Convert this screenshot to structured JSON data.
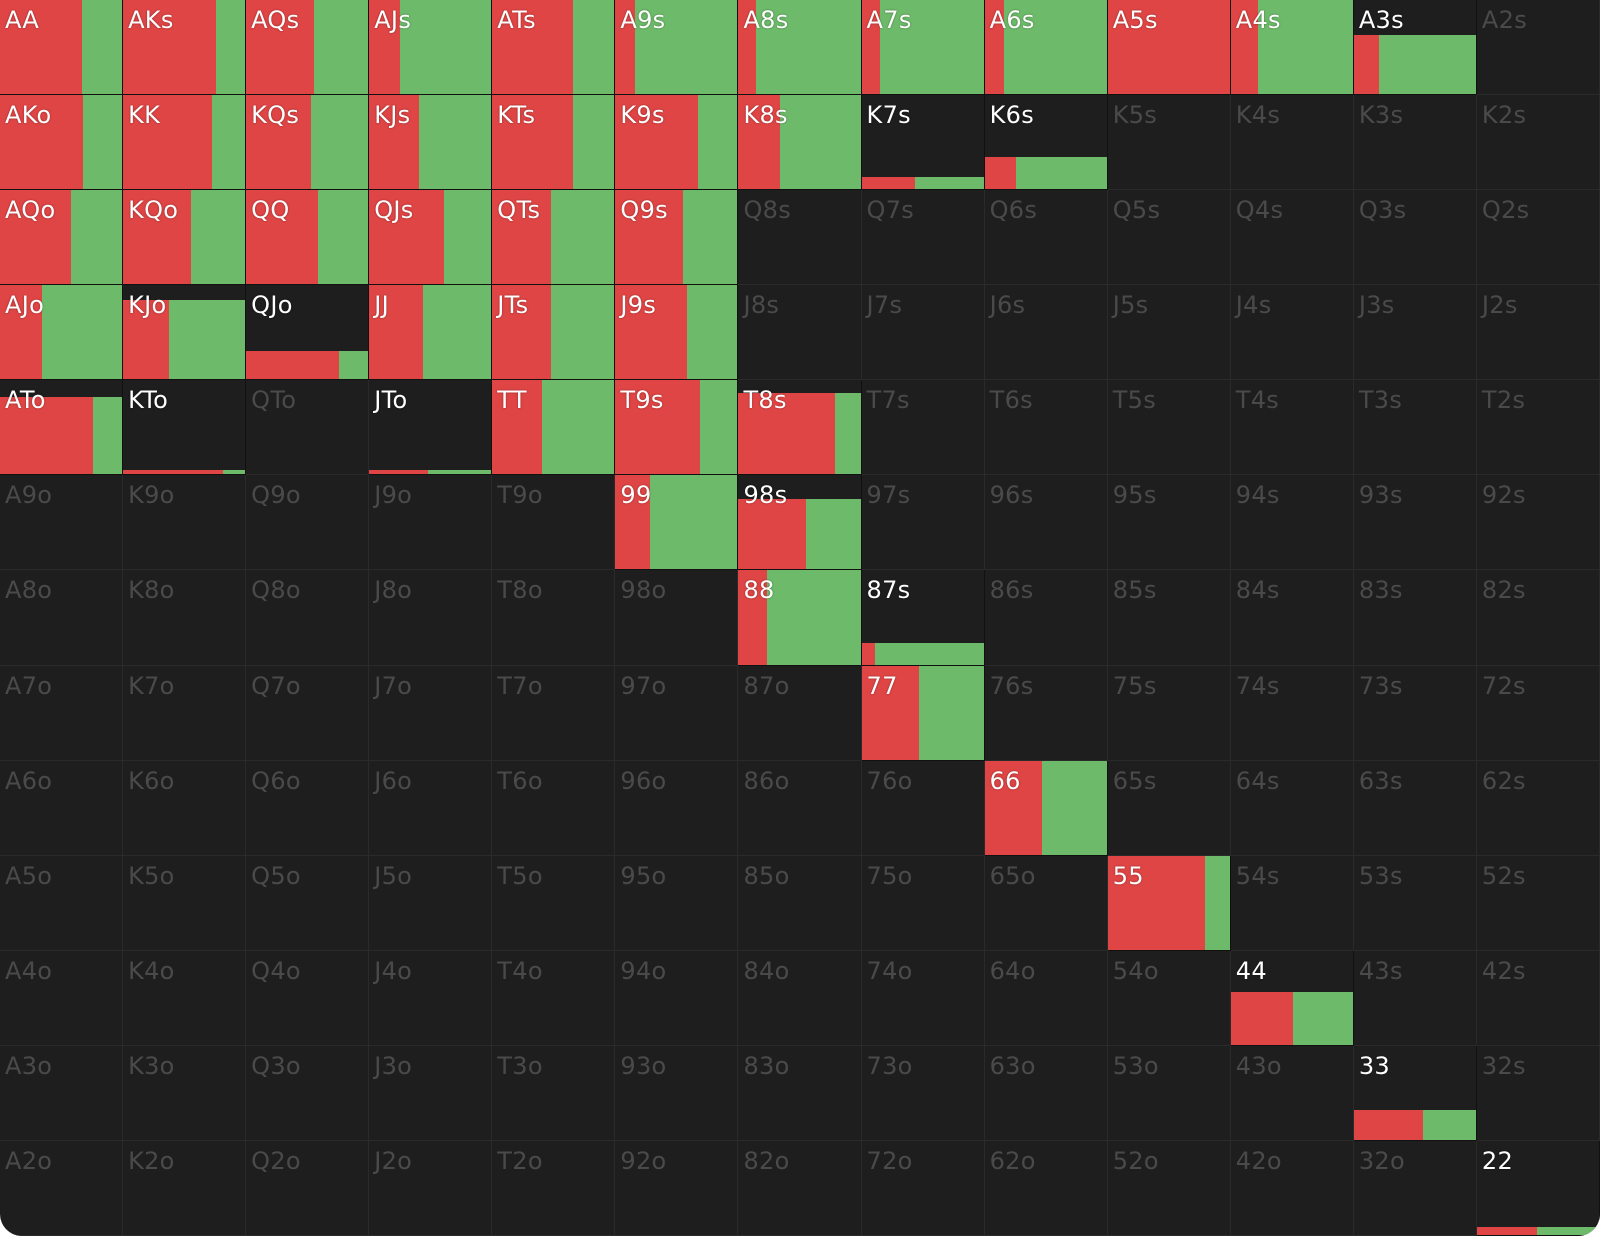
{
  "grid": {
    "rows": [
      [
        {
          "label": "AA",
          "freq": 100,
          "raise": 67,
          "call": 33
        },
        {
          "label": "AKs",
          "freq": 100,
          "raise": 76,
          "call": 24
        },
        {
          "label": "AQs",
          "freq": 100,
          "raise": 56,
          "call": 44
        },
        {
          "label": "AJs",
          "freq": 100,
          "raise": 25,
          "call": 75
        },
        {
          "label": "ATs",
          "freq": 100,
          "raise": 66,
          "call": 34
        },
        {
          "label": "A9s",
          "freq": 100,
          "raise": 16,
          "call": 84
        },
        {
          "label": "A8s",
          "freq": 100,
          "raise": 14,
          "call": 86
        },
        {
          "label": "A7s",
          "freq": 100,
          "raise": 15,
          "call": 85
        },
        {
          "label": "A6s",
          "freq": 100,
          "raise": 16,
          "call": 84
        },
        {
          "label": "A5s",
          "freq": 100,
          "raise": 100,
          "call": 0
        },
        {
          "label": "A4s",
          "freq": 100,
          "raise": 22,
          "call": 78
        },
        {
          "label": "A3s",
          "freq": 63,
          "raise": 21,
          "call": 79
        },
        {
          "label": "A2s"
        }
      ],
      [
        {
          "label": "AKo",
          "freq": 100,
          "raise": 68,
          "call": 32
        },
        {
          "label": "KK",
          "freq": 100,
          "raise": 73,
          "call": 27
        },
        {
          "label": "KQs",
          "freq": 100,
          "raise": 53,
          "call": 47
        },
        {
          "label": "KJs",
          "freq": 100,
          "raise": 41,
          "call": 59
        },
        {
          "label": "KTs",
          "freq": 100,
          "raise": 66,
          "call": 34
        },
        {
          "label": "K9s",
          "freq": 100,
          "raise": 68,
          "call": 32
        },
        {
          "label": "K8s",
          "freq": 100,
          "raise": 34,
          "call": 66
        },
        {
          "label": "K7s",
          "freq": 13,
          "raise": 44,
          "call": 56
        },
        {
          "label": "K6s",
          "freq": 34,
          "raise": 26,
          "call": 74
        },
        {
          "label": "K5s"
        },
        {
          "label": "K4s"
        },
        {
          "label": "K3s"
        },
        {
          "label": "K2s"
        }
      ],
      [
        {
          "label": "AQo",
          "freq": 100,
          "raise": 58,
          "call": 42
        },
        {
          "label": "KQo",
          "freq": 100,
          "raise": 56,
          "call": 44
        },
        {
          "label": "QQ",
          "freq": 100,
          "raise": 59,
          "call": 41
        },
        {
          "label": "QJs",
          "freq": 100,
          "raise": 61,
          "call": 39
        },
        {
          "label": "QTs",
          "freq": 100,
          "raise": 48,
          "call": 52
        },
        {
          "label": "Q9s",
          "freq": 100,
          "raise": 55,
          "call": 45
        },
        {
          "label": "Q8s"
        },
        {
          "label": "Q7s"
        },
        {
          "label": "Q6s"
        },
        {
          "label": "Q5s"
        },
        {
          "label": "Q4s"
        },
        {
          "label": "Q3s"
        },
        {
          "label": "Q2s"
        }
      ],
      [
        {
          "label": "AJo",
          "freq": 100,
          "raise": 34,
          "call": 66
        },
        {
          "label": "KJo",
          "freq": 84,
          "raise": 38,
          "call": 62
        },
        {
          "label": "QJo",
          "freq": 30,
          "raise": 76,
          "call": 24
        },
        {
          "label": "JJ",
          "freq": 100,
          "raise": 44,
          "call": 56
        },
        {
          "label": "JTs",
          "freq": 100,
          "raise": 48,
          "call": 52
        },
        {
          "label": "J9s",
          "freq": 100,
          "raise": 59,
          "call": 41
        },
        {
          "label": "J8s"
        },
        {
          "label": "J7s"
        },
        {
          "label": "J6s"
        },
        {
          "label": "J5s"
        },
        {
          "label": "J4s"
        },
        {
          "label": "J3s"
        },
        {
          "label": "J2s"
        }
      ],
      [
        {
          "label": "ATo",
          "freq": 82,
          "raise": 76,
          "call": 24
        },
        {
          "label": "KTo",
          "freq": 5,
          "raise": 82,
          "call": 18
        },
        {
          "label": "QTo"
        },
        {
          "label": "JTo",
          "freq": 5,
          "raise": 48,
          "call": 52
        },
        {
          "label": "TT",
          "freq": 100,
          "raise": 41,
          "call": 59
        },
        {
          "label": "T9s",
          "freq": 100,
          "raise": 69,
          "call": 31
        },
        {
          "label": "T8s",
          "freq": 87,
          "raise": 79,
          "call": 21
        },
        {
          "label": "T7s"
        },
        {
          "label": "T6s"
        },
        {
          "label": "T5s"
        },
        {
          "label": "T4s"
        },
        {
          "label": "T3s"
        },
        {
          "label": "T2s"
        }
      ],
      [
        {
          "label": "A9o"
        },
        {
          "label": "K9o"
        },
        {
          "label": "Q9o"
        },
        {
          "label": "J9o"
        },
        {
          "label": "T9o"
        },
        {
          "label": "99",
          "freq": 100,
          "raise": 28,
          "call": 72
        },
        {
          "label": "98s",
          "freq": 75,
          "raise": 55,
          "call": 45
        },
        {
          "label": "97s"
        },
        {
          "label": "96s"
        },
        {
          "label": "95s"
        },
        {
          "label": "94s"
        },
        {
          "label": "93s"
        },
        {
          "label": "92s"
        }
      ],
      [
        {
          "label": "A8o"
        },
        {
          "label": "K8o"
        },
        {
          "label": "Q8o"
        },
        {
          "label": "J8o"
        },
        {
          "label": "T8o"
        },
        {
          "label": "98o"
        },
        {
          "label": "88",
          "freq": 100,
          "raise": 23,
          "call": 77
        },
        {
          "label": "87s",
          "freq": 23,
          "raise": 11,
          "call": 89
        },
        {
          "label": "86s"
        },
        {
          "label": "85s"
        },
        {
          "label": "84s"
        },
        {
          "label": "83s"
        },
        {
          "label": "82s"
        }
      ],
      [
        {
          "label": "A7o"
        },
        {
          "label": "K7o"
        },
        {
          "label": "Q7o"
        },
        {
          "label": "J7o"
        },
        {
          "label": "T7o"
        },
        {
          "label": "97o"
        },
        {
          "label": "87o"
        },
        {
          "label": "77",
          "freq": 100,
          "raise": 47,
          "call": 53
        },
        {
          "label": "76s"
        },
        {
          "label": "75s"
        },
        {
          "label": "74s"
        },
        {
          "label": "73s"
        },
        {
          "label": "72s"
        }
      ],
      [
        {
          "label": "A6o"
        },
        {
          "label": "K6o"
        },
        {
          "label": "Q6o"
        },
        {
          "label": "J6o"
        },
        {
          "label": "T6o"
        },
        {
          "label": "96o"
        },
        {
          "label": "86o"
        },
        {
          "label": "76o"
        },
        {
          "label": "66",
          "freq": 100,
          "raise": 47,
          "call": 53
        },
        {
          "label": "65s"
        },
        {
          "label": "64s"
        },
        {
          "label": "63s"
        },
        {
          "label": "62s"
        }
      ],
      [
        {
          "label": "A5o"
        },
        {
          "label": "K5o"
        },
        {
          "label": "Q5o"
        },
        {
          "label": "J5o"
        },
        {
          "label": "T5o"
        },
        {
          "label": "95o"
        },
        {
          "label": "85o"
        },
        {
          "label": "75o"
        },
        {
          "label": "65o"
        },
        {
          "label": "55",
          "freq": 100,
          "raise": 80,
          "call": 20
        },
        {
          "label": "54s"
        },
        {
          "label": "53s"
        },
        {
          "label": "52s"
        }
      ],
      [
        {
          "label": "A4o"
        },
        {
          "label": "K4o"
        },
        {
          "label": "Q4o"
        },
        {
          "label": "J4o"
        },
        {
          "label": "T4o"
        },
        {
          "label": "94o"
        },
        {
          "label": "84o"
        },
        {
          "label": "74o"
        },
        {
          "label": "64o"
        },
        {
          "label": "54o"
        },
        {
          "label": "44",
          "freq": 56,
          "raise": 51,
          "call": 49
        },
        {
          "label": "43s"
        },
        {
          "label": "42s"
        }
      ],
      [
        {
          "label": "A3o"
        },
        {
          "label": "K3o"
        },
        {
          "label": "Q3o"
        },
        {
          "label": "J3o"
        },
        {
          "label": "T3o"
        },
        {
          "label": "93o"
        },
        {
          "label": "83o"
        },
        {
          "label": "73o"
        },
        {
          "label": "63o"
        },
        {
          "label": "53o"
        },
        {
          "label": "43o"
        },
        {
          "label": "33",
          "freq": 32,
          "raise": 57,
          "call": 43
        },
        {
          "label": "32s"
        }
      ],
      [
        {
          "label": "A2o"
        },
        {
          "label": "K2o"
        },
        {
          "label": "Q2o"
        },
        {
          "label": "J2o"
        },
        {
          "label": "T2o"
        },
        {
          "label": "92o"
        },
        {
          "label": "82o"
        },
        {
          "label": "72o"
        },
        {
          "label": "62o"
        },
        {
          "label": "52o"
        },
        {
          "label": "42o"
        },
        {
          "label": "32o"
        },
        {
          "label": "22",
          "freq": 9,
          "raise": 49,
          "call": 51
        }
      ]
    ]
  }
}
